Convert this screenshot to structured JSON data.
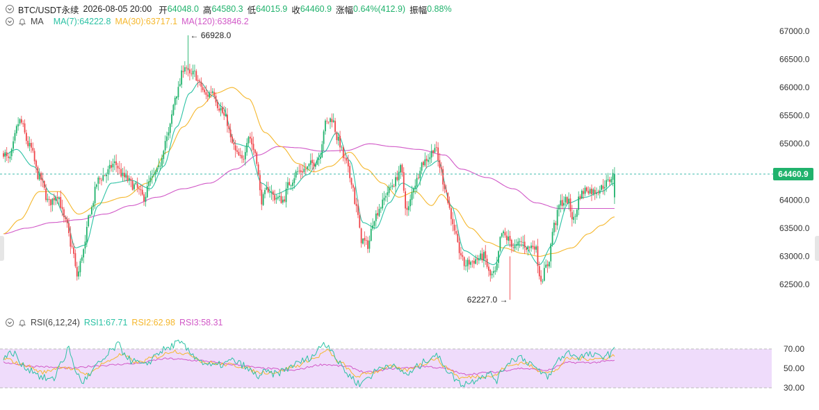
{
  "header": {
    "symbol": "BTC/USDT永续",
    "datetime": "2026-08-05 20:00",
    "open_label": "开",
    "open": "64048.0",
    "high_label": "高",
    "high": "64580.3",
    "low_label": "低",
    "low": "64015.9",
    "close_label": "收",
    "close": "64460.9",
    "change_label": "涨幅",
    "change": "0.64%(412.9)",
    "amp_label": "振幅",
    "amp": "0.88%"
  },
  "ma_row": {
    "label": "MA",
    "ma7": "MA(7):64222.8",
    "ma30": "MA(30):63717.1",
    "ma120": "MA(120):63846.2"
  },
  "rsi_row": {
    "label": "RSI(6,12,24)",
    "rsi1": "RSI1:67.71",
    "rsi2": "RSI2:62.98",
    "rsi3": "RSI3:58.31"
  },
  "colors": {
    "up": "#20b26c",
    "down": "#ef454a",
    "ma7": "#2bc2a4",
    "ma30": "#f5b72c",
    "ma120": "#d158c7",
    "rsi_band": "#efdcfb"
  },
  "chart_data": [
    {
      "type": "candlestick",
      "y_ticks": [
        "67000.0",
        "66500.0",
        "66000.0",
        "65500.0",
        "65000.0",
        "64500.0",
        "64000.0",
        "63500.0",
        "63000.0",
        "62500.0"
      ],
      "ylim": [
        62100,
        67200
      ],
      "last_price": "64460.9",
      "max_annotation": "66928.0",
      "min_annotation": "62227.0",
      "max_value": 66928,
      "min_value": 62227,
      "anchors": [
        [
          0,
          64850
        ],
        [
          3,
          64700
        ],
        [
          10,
          65400
        ],
        [
          16,
          64950
        ],
        [
          22,
          64400
        ],
        [
          28,
          63950
        ],
        [
          33,
          64100
        ],
        [
          38,
          63600
        ],
        [
          42,
          63150
        ],
        [
          45,
          62650
        ],
        [
          49,
          63100
        ],
        [
          53,
          63800
        ],
        [
          58,
          64350
        ],
        [
          62,
          64450
        ],
        [
          68,
          64650
        ],
        [
          74,
          64400
        ],
        [
          80,
          64250
        ],
        [
          86,
          64050
        ],
        [
          90,
          64350
        ],
        [
          94,
          64500
        ],
        [
          100,
          65100
        ],
        [
          106,
          65900
        ],
        [
          111,
          66400
        ],
        [
          114,
          66200
        ],
        [
          117,
          66250
        ],
        [
          120,
          66050
        ],
        [
          124,
          65850
        ],
        [
          128,
          65950
        ],
        [
          132,
          65650
        ],
        [
          136,
          65450
        ],
        [
          140,
          65000
        ],
        [
          143,
          64800
        ],
        [
          146,
          64700
        ],
        [
          150,
          65150
        ],
        [
          154,
          64850
        ],
        [
          158,
          64000
        ],
        [
          162,
          64200
        ],
        [
          166,
          64050
        ],
        [
          171,
          64000
        ],
        [
          175,
          64300
        ],
        [
          180,
          64500
        ],
        [
          185,
          64550
        ],
        [
          189,
          64650
        ],
        [
          193,
          64750
        ],
        [
          197,
          65350
        ],
        [
          201,
          65450
        ],
        [
          205,
          65050
        ],
        [
          209,
          64700
        ],
        [
          213,
          64350
        ],
        [
          216,
          63850
        ],
        [
          219,
          63300
        ],
        [
          223,
          63200
        ],
        [
          227,
          63700
        ],
        [
          231,
          63900
        ],
        [
          235,
          64150
        ],
        [
          239,
          64300
        ],
        [
          243,
          64550
        ],
        [
          247,
          63800
        ],
        [
          252,
          64300
        ],
        [
          256,
          64650
        ],
        [
          260,
          64750
        ],
        [
          264,
          64950
        ],
        [
          267,
          64600
        ],
        [
          270,
          64250
        ],
        [
          273,
          63850
        ],
        [
          276,
          63400
        ],
        [
          279,
          63100
        ],
        [
          282,
          62850
        ],
        [
          286,
          62900
        ],
        [
          290,
          62950
        ],
        [
          294,
          63000
        ],
        [
          298,
          62650
        ],
        [
          301,
          62700
        ],
        [
          305,
          63400
        ],
        [
          309,
          63300
        ],
        [
          313,
          63150
        ],
        [
          317,
          63250
        ],
        [
          321,
          63150
        ],
        [
          325,
          63200
        ],
        [
          329,
          62600
        ],
        [
          333,
          62850
        ],
        [
          337,
          63550
        ],
        [
          341,
          63950
        ],
        [
          345,
          64000
        ],
        [
          349,
          63650
        ],
        [
          353,
          64100
        ],
        [
          357,
          64200
        ],
        [
          361,
          64150
        ],
        [
          365,
          64200
        ],
        [
          369,
          64300
        ],
        [
          374,
          64460
        ]
      ],
      "ma7_anchors": [
        [
          0,
          64800
        ],
        [
          8,
          64900
        ],
        [
          18,
          64600
        ],
        [
          30,
          64100
        ],
        [
          38,
          63700
        ],
        [
          44,
          63150
        ],
        [
          50,
          63200
        ],
        [
          58,
          63900
        ],
        [
          66,
          64300
        ],
        [
          78,
          64350
        ],
        [
          90,
          64200
        ],
        [
          98,
          64600
        ],
        [
          106,
          65300
        ],
        [
          114,
          65900
        ],
        [
          120,
          66100
        ],
        [
          128,
          65850
        ],
        [
          134,
          65650
        ],
        [
          142,
          65000
        ],
        [
          150,
          64950
        ],
        [
          158,
          64300
        ],
        [
          166,
          64100
        ],
        [
          176,
          64200
        ],
        [
          186,
          64450
        ],
        [
          196,
          64850
        ],
        [
          204,
          65200
        ],
        [
          212,
          64700
        ],
        [
          220,
          63600
        ],
        [
          228,
          63500
        ],
        [
          236,
          63950
        ],
        [
          244,
          64300
        ],
        [
          252,
          64200
        ],
        [
          260,
          64600
        ],
        [
          266,
          64700
        ],
        [
          274,
          63900
        ],
        [
          282,
          63100
        ],
        [
          292,
          62950
        ],
        [
          300,
          62850
        ],
        [
          308,
          63200
        ],
        [
          318,
          63200
        ],
        [
          328,
          62850
        ],
        [
          336,
          63200
        ],
        [
          346,
          63950
        ],
        [
          356,
          64050
        ],
        [
          366,
          64150
        ],
        [
          374,
          64300
        ]
      ],
      "ma30_anchors": [
        [
          0,
          63400
        ],
        [
          10,
          63650
        ],
        [
          22,
          64150
        ],
        [
          34,
          64150
        ],
        [
          46,
          63750
        ],
        [
          60,
          63950
        ],
        [
          74,
          64050
        ],
        [
          88,
          64300
        ],
        [
          100,
          64850
        ],
        [
          110,
          65300
        ],
        [
          120,
          65650
        ],
        [
          130,
          65900
        ],
        [
          140,
          66000
        ],
        [
          150,
          65800
        ],
        [
          160,
          65200
        ],
        [
          170,
          64950
        ],
        [
          180,
          64650
        ],
        [
          190,
          64500
        ],
        [
          200,
          64600
        ],
        [
          212,
          64850
        ],
        [
          222,
          64550
        ],
        [
          232,
          64300
        ],
        [
          242,
          64050
        ],
        [
          252,
          64150
        ],
        [
          262,
          63900
        ],
        [
          268,
          64100
        ],
        [
          276,
          63850
        ],
        [
          286,
          63500
        ],
        [
          296,
          63250
        ],
        [
          306,
          63150
        ],
        [
          318,
          63050
        ],
        [
          328,
          63000
        ],
        [
          336,
          63050
        ],
        [
          348,
          63150
        ],
        [
          358,
          63400
        ],
        [
          366,
          63550
        ],
        [
          374,
          63700
        ]
      ],
      "ma120_anchors": [
        [
          0,
          63400
        ],
        [
          14,
          63500
        ],
        [
          30,
          63600
        ],
        [
          46,
          63650
        ],
        [
          62,
          63750
        ],
        [
          78,
          63900
        ],
        [
          94,
          64050
        ],
        [
          110,
          64200
        ],
        [
          126,
          64300
        ],
        [
          142,
          64550
        ],
        [
          156,
          64800
        ],
        [
          168,
          64950
        ],
        [
          180,
          64930
        ],
        [
          194,
          64870
        ],
        [
          210,
          64880
        ],
        [
          224,
          65000
        ],
        [
          238,
          64950
        ],
        [
          254,
          64900
        ],
        [
          270,
          64800
        ],
        [
          280,
          64550
        ],
        [
          296,
          64400
        ],
        [
          312,
          64200
        ],
        [
          326,
          63950
        ],
        [
          340,
          63850
        ],
        [
          356,
          63850
        ],
        [
          374,
          63850
        ]
      ]
    },
    {
      "type": "line",
      "name": "RSI",
      "y_ticks": [
        "70.00",
        "50.00",
        "30.00"
      ],
      "ylim": [
        20,
        80
      ],
      "band": [
        30,
        70
      ],
      "rsi1_anchors": [
        [
          0,
          62
        ],
        [
          6,
          66
        ],
        [
          12,
          52
        ],
        [
          18,
          48
        ],
        [
          24,
          40
        ],
        [
          30,
          38
        ],
        [
          36,
          58
        ],
        [
          40,
          70
        ],
        [
          44,
          48
        ],
        [
          48,
          36
        ],
        [
          52,
          42
        ],
        [
          58,
          54
        ],
        [
          62,
          60
        ],
        [
          66,
          68
        ],
        [
          70,
          74
        ],
        [
          74,
          66
        ],
        [
          78,
          58
        ],
        [
          82,
          56
        ],
        [
          86,
          52
        ],
        [
          90,
          58
        ],
        [
          94,
          66
        ],
        [
          100,
          70
        ],
        [
          106,
          76
        ],
        [
          110,
          74
        ],
        [
          114,
          66
        ],
        [
          118,
          62
        ],
        [
          122,
          56
        ],
        [
          128,
          52
        ],
        [
          134,
          54
        ],
        [
          140,
          58
        ],
        [
          146,
          54
        ],
        [
          150,
          48
        ],
        [
          156,
          42
        ],
        [
          160,
          46
        ],
        [
          166,
          44
        ],
        [
          172,
          48
        ],
        [
          178,
          54
        ],
        [
          184,
          58
        ],
        [
          190,
          64
        ],
        [
          196,
          76
        ],
        [
          200,
          72
        ],
        [
          206,
          54
        ],
        [
          212,
          42
        ],
        [
          218,
          34
        ],
        [
          224,
          42
        ],
        [
          230,
          50
        ],
        [
          236,
          54
        ],
        [
          242,
          48
        ],
        [
          248,
          44
        ],
        [
          254,
          52
        ],
        [
          260,
          60
        ],
        [
          264,
          64
        ],
        [
          268,
          58
        ],
        [
          272,
          48
        ],
        [
          276,
          40
        ],
        [
          280,
          34
        ],
        [
          286,
          36
        ],
        [
          292,
          42
        ],
        [
          298,
          44
        ],
        [
          302,
          38
        ],
        [
          306,
          50
        ],
        [
          310,
          58
        ],
        [
          316,
          62
        ],
        [
          322,
          56
        ],
        [
          328,
          46
        ],
        [
          334,
          42
        ],
        [
          340,
          60
        ],
        [
          346,
          66
        ],
        [
          352,
          62
        ],
        [
          358,
          64
        ],
        [
          364,
          62
        ],
        [
          370,
          64
        ],
        [
          374,
          68
        ]
      ],
      "rsi2_anchors": [
        [
          0,
          60
        ],
        [
          12,
          54
        ],
        [
          24,
          46
        ],
        [
          36,
          52
        ],
        [
          44,
          48
        ],
        [
          52,
          44
        ],
        [
          62,
          56
        ],
        [
          72,
          64
        ],
        [
          82,
          56
        ],
        [
          94,
          62
        ],
        [
          104,
          68
        ],
        [
          114,
          64
        ],
        [
          124,
          56
        ],
        [
          136,
          54
        ],
        [
          146,
          52
        ],
        [
          156,
          46
        ],
        [
          166,
          46
        ],
        [
          178,
          52
        ],
        [
          190,
          60
        ],
        [
          198,
          68
        ],
        [
          206,
          56
        ],
        [
          216,
          42
        ],
        [
          226,
          46
        ],
        [
          236,
          52
        ],
        [
          246,
          48
        ],
        [
          256,
          54
        ],
        [
          264,
          60
        ],
        [
          272,
          50
        ],
        [
          280,
          40
        ],
        [
          290,
          42
        ],
        [
          300,
          42
        ],
        [
          308,
          52
        ],
        [
          318,
          56
        ],
        [
          328,
          48
        ],
        [
          336,
          46
        ],
        [
          346,
          60
        ],
        [
          356,
          60
        ],
        [
          366,
          60
        ],
        [
          374,
          63
        ]
      ],
      "rsi3_anchors": [
        [
          0,
          56
        ],
        [
          20,
          52
        ],
        [
          40,
          50
        ],
        [
          60,
          53
        ],
        [
          80,
          55
        ],
        [
          100,
          60
        ],
        [
          120,
          58
        ],
        [
          140,
          54
        ],
        [
          160,
          50
        ],
        [
          176,
          48
        ],
        [
          196,
          54
        ],
        [
          210,
          52
        ],
        [
          222,
          46
        ],
        [
          240,
          50
        ],
        [
          258,
          52
        ],
        [
          270,
          50
        ],
        [
          282,
          44
        ],
        [
          300,
          46
        ],
        [
          316,
          50
        ],
        [
          332,
          48
        ],
        [
          346,
          56
        ],
        [
          360,
          56
        ],
        [
          374,
          58
        ]
      ]
    }
  ]
}
